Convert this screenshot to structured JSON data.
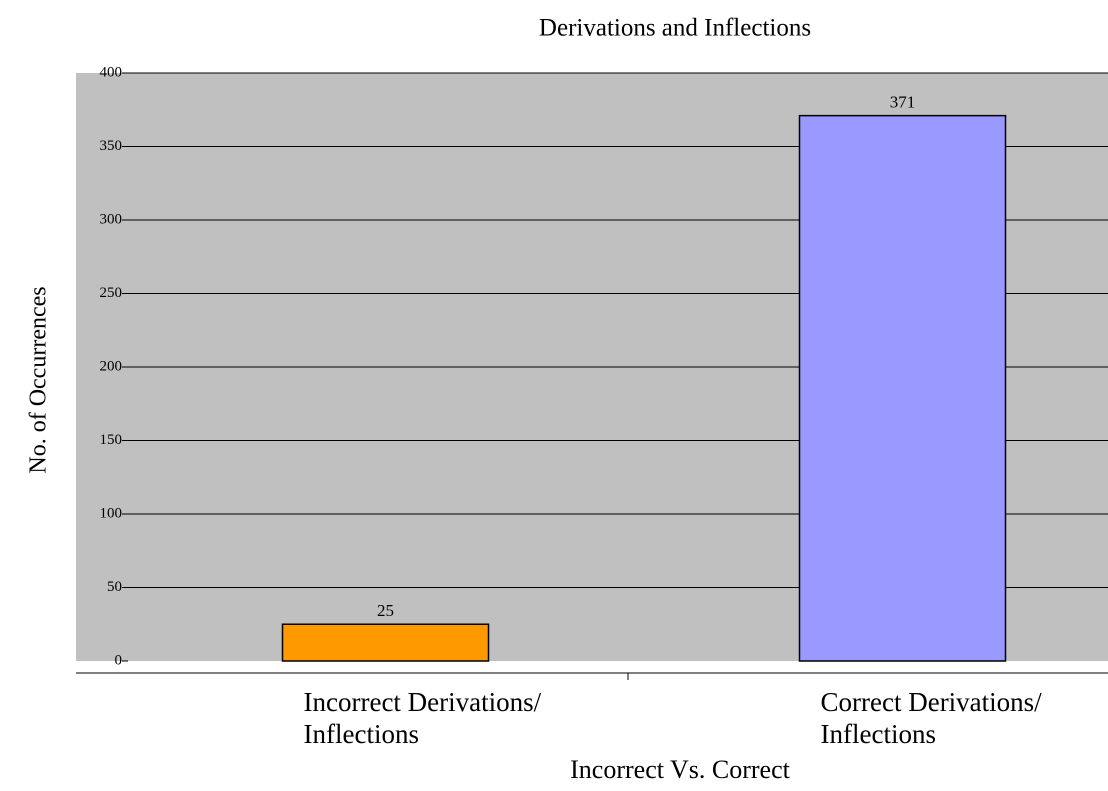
{
  "chart_data": {
    "type": "bar",
    "title": "Derivations and Inflections",
    "x_label": "Incorrect Vs. Correct",
    "y_label": "No. of Occurrences",
    "categories": [
      "Incorrect Derivations/ Inflections",
      "Correct Derivations/ Inflections"
    ],
    "series": [
      {
        "name": "Occurrences",
        "colors": [
          "#ff9900",
          "#9999ff"
        ],
        "values": [
          25,
          371
        ]
      }
    ],
    "ylim": [
      0,
      400
    ],
    "yticks": [
      0,
      50,
      100,
      150,
      200,
      250,
      300,
      350,
      400
    ],
    "grid": true
  }
}
